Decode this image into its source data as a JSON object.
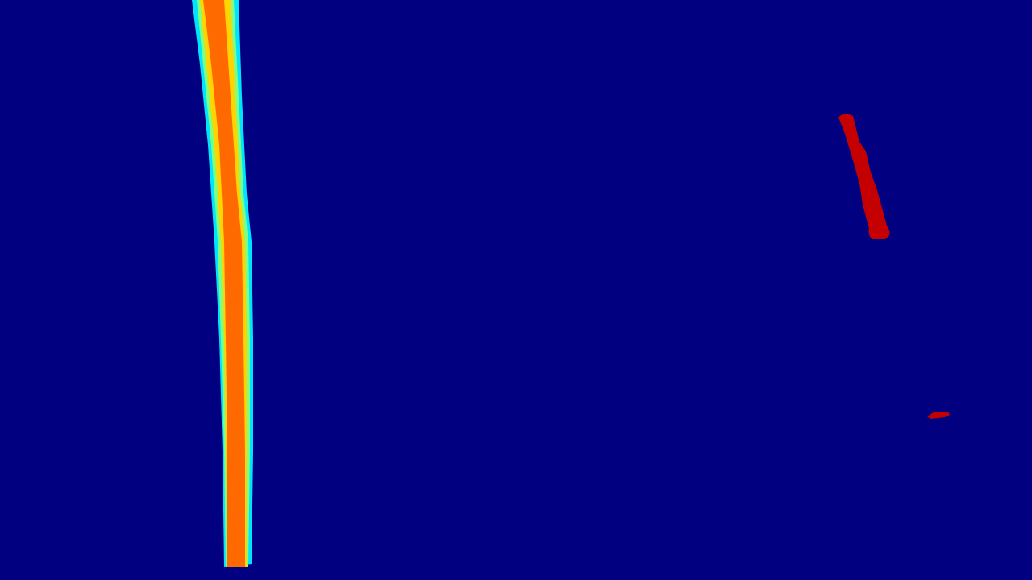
{
  "image": {
    "kind": "heatmap-segmentation-mask",
    "colormap": "jet",
    "background_color": "#000080"
  },
  "colors": {
    "outer_glow": "#00e5ff",
    "mid_glow": "#7fff7f",
    "inner_glow": "#ffd400",
    "core": "#ff6a00",
    "solid_red": "#c40000"
  },
  "regions": [
    {
      "name": "left-lane-line",
      "kind": "graded-stripe",
      "intensity": "high"
    },
    {
      "name": "right-lane-segment",
      "kind": "solid-stripe",
      "intensity": "max"
    },
    {
      "name": "right-lane-blob",
      "kind": "solid-blob",
      "intensity": "max"
    }
  ]
}
